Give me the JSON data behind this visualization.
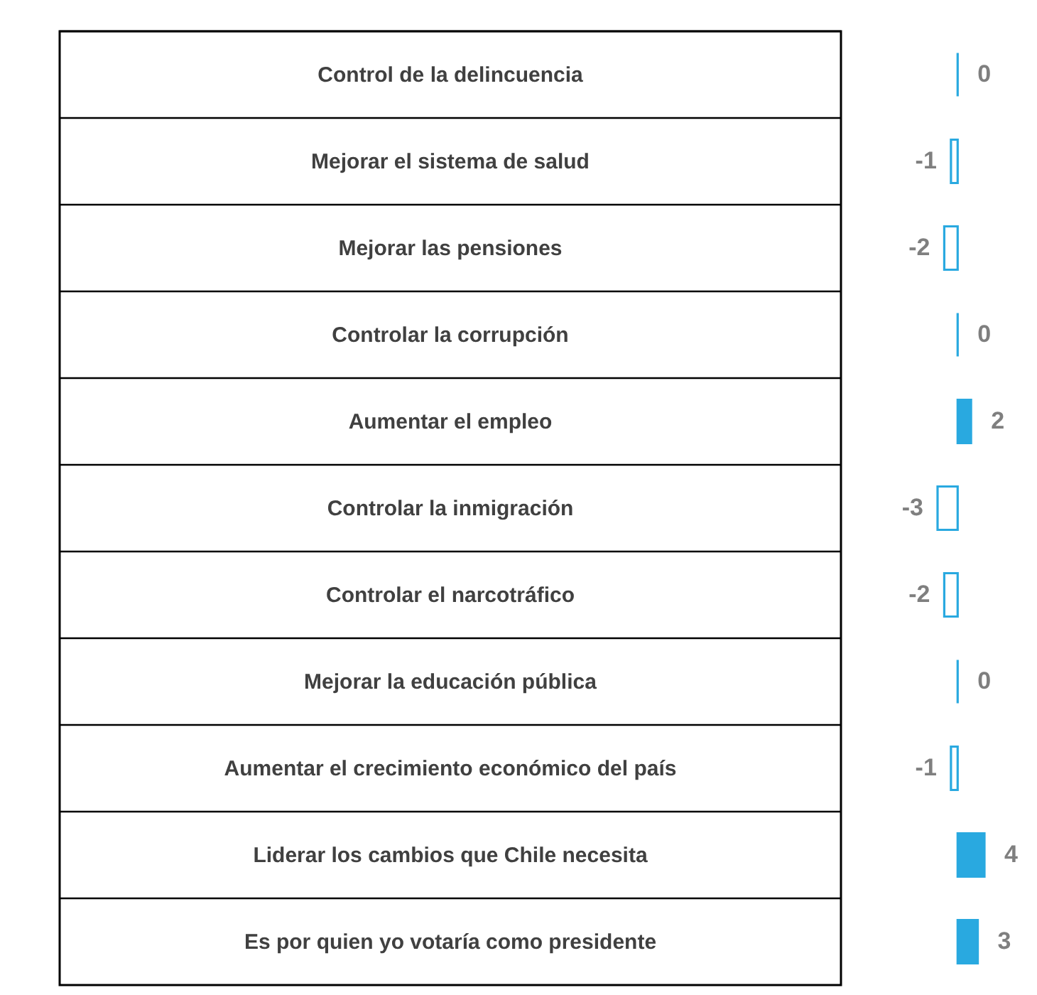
{
  "chart_data": {
    "type": "bar",
    "orientation": "horizontal",
    "categories": [
      "Control de la delincuencia",
      "Mejorar el sistema de salud",
      "Mejorar las pensiones",
      "Controlar la corrupción",
      "Aumentar el empleo",
      "Controlar la inmigración",
      "Controlar el narcotráfico",
      "Mejorar la educación pública",
      "Aumentar el crecimiento económico del país",
      "Liderar los cambios que Chile necesita",
      "Es por quien yo votaría como presidente"
    ],
    "values": [
      0,
      -1,
      -2,
      0,
      2,
      -3,
      -2,
      0,
      -1,
      4,
      3
    ],
    "color": "#29a9e0",
    "data_labels": true,
    "tick_labels": "y"
  }
}
